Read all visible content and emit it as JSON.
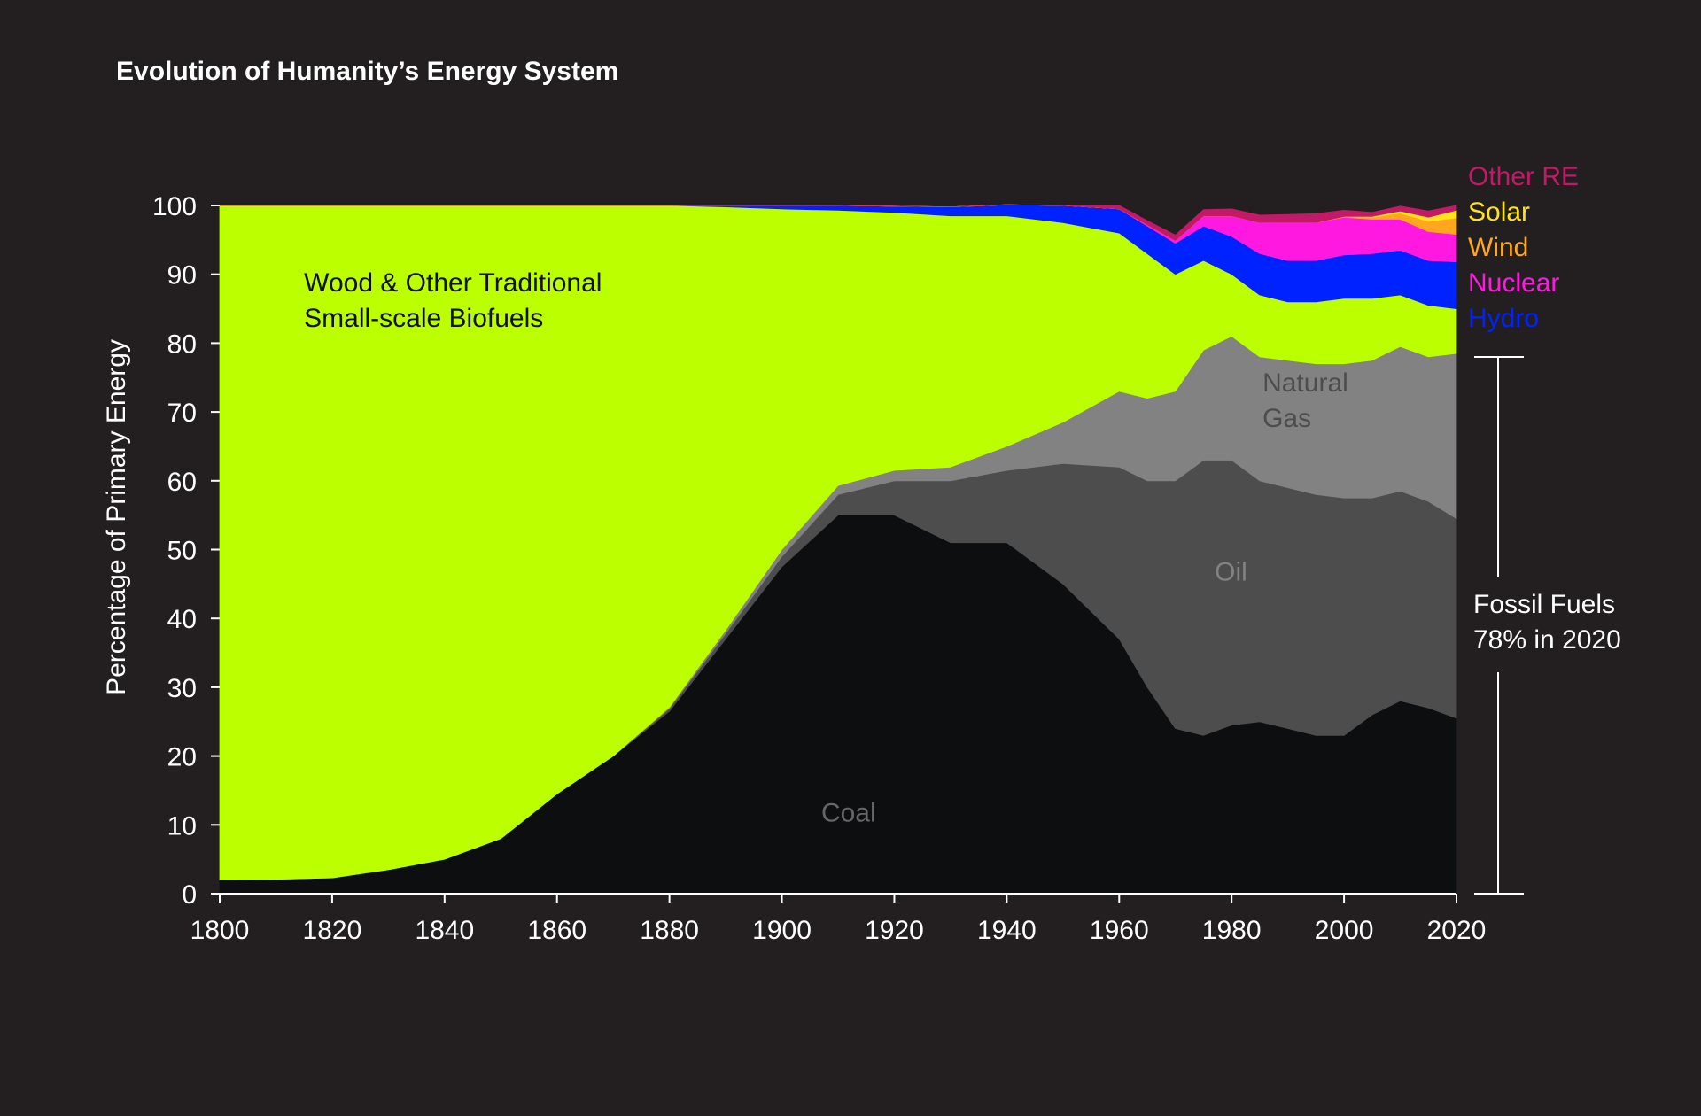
{
  "chart_data": {
    "type": "area",
    "stacked": true,
    "title": "Evolution of Humanity’s Energy System",
    "ylabel": "Percentage of Primary Energy",
    "xlabel": "",
    "xlim": [
      1800,
      2020
    ],
    "ylim": [
      0,
      100
    ],
    "grid": false,
    "x_ticks": [
      "1800",
      "1820",
      "1840",
      "1860",
      "1880",
      "1900",
      "1920",
      "1940",
      "1960",
      "1980",
      "2000",
      "2020"
    ],
    "y_ticks": [
      "0",
      "10",
      "20",
      "30",
      "40",
      "50",
      "60",
      "70",
      "80",
      "90",
      "100"
    ],
    "x": [
      1800,
      1810,
      1820,
      1830,
      1840,
      1850,
      1860,
      1870,
      1880,
      1890,
      1900,
      1910,
      1920,
      1930,
      1940,
      1950,
      1960,
      1965,
      1970,
      1975,
      1980,
      1985,
      1990,
      1995,
      2000,
      2005,
      2010,
      2015,
      2020
    ],
    "series": [
      {
        "name": "Coal",
        "color": "#0d0e10",
        "values": [
          2,
          2.1,
          2.3,
          3.5,
          5,
          8,
          14.5,
          20,
          26.5,
          37,
          47.5,
          55,
          55,
          51,
          51,
          45,
          37,
          30,
          24,
          23,
          24.5,
          25,
          24,
          23,
          23,
          26,
          28,
          27,
          25.5
        ]
      },
      {
        "name": "Oil",
        "color": "#4d4d4d",
        "values": [
          0,
          0,
          0,
          0,
          0,
          0,
          0,
          0,
          0.4,
          0.8,
          1.5,
          3,
          5,
          9,
          10.5,
          17.5,
          25,
          30,
          36,
          40,
          38.5,
          35,
          35,
          35,
          34.5,
          31.5,
          30.5,
          30,
          29
        ]
      },
      {
        "name": "Natural Gas",
        "color": "#828282",
        "values": [
          0,
          0,
          0,
          0,
          0,
          0,
          0,
          0,
          0.2,
          0.5,
          1,
          1.3,
          1.5,
          2,
          3.5,
          6,
          11,
          12,
          13,
          16,
          18,
          18,
          18.5,
          19,
          19.5,
          20,
          21,
          21,
          24
        ]
      },
      {
        "name": "Wood & Other Traditional Small-scale Biofuels",
        "color": "#bbff00",
        "values": [
          98,
          97.9,
          97.7,
          96.5,
          95,
          92,
          85.5,
          80,
          72.9,
          61.5,
          49.5,
          40,
          37.5,
          36.5,
          33.5,
          29,
          23,
          21,
          17,
          13,
          9,
          9,
          8.5,
          9,
          9.5,
          9,
          7.5,
          7.5,
          6.5
        ]
      },
      {
        "name": "Hydro",
        "color": "#0022ff",
        "values": [
          0,
          0,
          0,
          0,
          0,
          0,
          0,
          0,
          0,
          0.2,
          0.5,
          0.7,
          0.9,
          1.3,
          1.6,
          2.5,
          3.5,
          4,
          4.5,
          5,
          5.5,
          6,
          6,
          6,
          6.3,
          6.5,
          6.5,
          6.5,
          6.8
        ]
      },
      {
        "name": "Nuclear",
        "color": "#ff19e0",
        "values": [
          0,
          0,
          0,
          0,
          0,
          0,
          0,
          0,
          0,
          0,
          0,
          0,
          0,
          0,
          0,
          0,
          0,
          0.2,
          0.4,
          1.5,
          3,
          4.5,
          5.5,
          5.5,
          5.5,
          5,
          4.5,
          4.2,
          4
        ]
      },
      {
        "name": "Wind",
        "color": "#ffa81f",
        "values": [
          0,
          0,
          0,
          0,
          0,
          0,
          0,
          0,
          0,
          0,
          0,
          0,
          0,
          0,
          0,
          0,
          0,
          0,
          0,
          0,
          0,
          0,
          0,
          0,
          0.1,
          0.3,
          0.9,
          1.5,
          2.4
        ]
      },
      {
        "name": "Solar",
        "color": "#ffe41a",
        "values": [
          0,
          0,
          0,
          0,
          0,
          0,
          0,
          0,
          0,
          0,
          0,
          0,
          0,
          0,
          0,
          0,
          0,
          0,
          0,
          0,
          0,
          0,
          0,
          0,
          0,
          0.1,
          0.3,
          0.6,
          1.1
        ]
      },
      {
        "name": "Other RE",
        "color": "#c21a66",
        "values": [
          0,
          0,
          0,
          0,
          0,
          0,
          0,
          0,
          0,
          0,
          0,
          0,
          0,
          0,
          0,
          0,
          0.5,
          0.6,
          0.8,
          0.9,
          1,
          1.1,
          1.2,
          1.3,
          0.9,
          0.6,
          0.7,
          0.9,
          0.7
        ]
      }
    ],
    "series_labels": [
      {
        "series": "Coal",
        "text": "Coal",
        "at_x": 1907,
        "at_y": 10.5,
        "color": "#666666"
      },
      {
        "series": "Oil",
        "text": "Oil",
        "at_x": 1977,
        "at_y": 45.5,
        "color": "#828282"
      },
      {
        "series": "Natural Gas",
        "lines": [
          "Natural",
          "Gas"
        ],
        "at_x": 1985.5,
        "at_y": 73,
        "color": "#4d4d4d"
      },
      {
        "series": "Wood & Other Traditional Small-scale Biofuels",
        "lines": [
          "Wood & Other Traditional",
          "Small-scale Biofuels"
        ],
        "at_x": 1815,
        "at_y": 87.5,
        "color": "#111111"
      }
    ],
    "legend": {
      "placement": "right",
      "items": [
        {
          "text": "Other RE",
          "color": "#c21a66"
        },
        {
          "text": "Solar",
          "color": "#ffe41a"
        },
        {
          "text": "Wind",
          "color": "#ffa81f"
        },
        {
          "text": "Nuclear",
          "color": "#ff19e0"
        },
        {
          "text": "Hydro",
          "color": "#0022ff"
        }
      ]
    },
    "annotation": {
      "text_lines": [
        "Fossil Fuels",
        "78% in 2020"
      ],
      "range_y": [
        0,
        78
      ],
      "value_percent": 78,
      "year": 2020
    }
  }
}
